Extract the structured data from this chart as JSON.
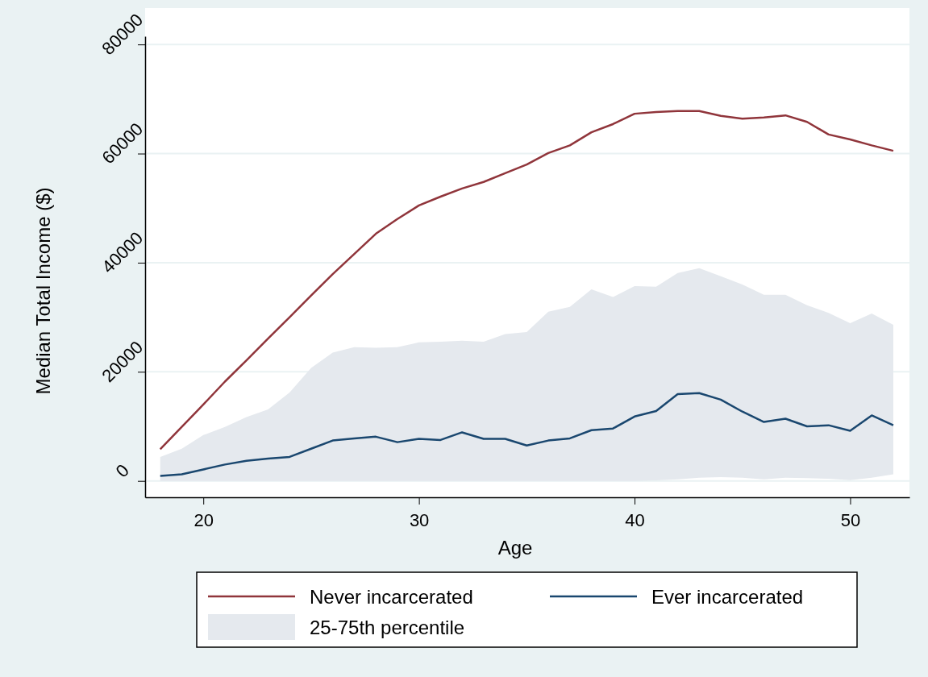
{
  "chart_data": {
    "type": "line",
    "xlabel": "Age",
    "ylabel": "Median Total Income ($)",
    "x": [
      18,
      19,
      20,
      21,
      22,
      23,
      24,
      25,
      26,
      27,
      28,
      29,
      30,
      31,
      32,
      33,
      34,
      35,
      36,
      37,
      38,
      39,
      40,
      41,
      42,
      43,
      44,
      45,
      46,
      47,
      48,
      49,
      50,
      51,
      52
    ],
    "series": [
      {
        "name": "Never incarcerated",
        "color": "#90353b",
        "values": [
          5800,
          9900,
          14000,
          18200,
          22100,
          26100,
          30000,
          34000,
          37900,
          41600,
          45300,
          48000,
          50500,
          52100,
          53600,
          54800,
          56400,
          58000,
          60100,
          61500,
          63900,
          65400,
          67300,
          67600,
          67800,
          67800,
          66900,
          66400,
          66600,
          67000,
          65800,
          63500,
          62600,
          61500,
          60500
        ]
      },
      {
        "name": "Ever incarcerated",
        "color": "#1a476f",
        "values": [
          900,
          1200,
          2100,
          3000,
          3700,
          4100,
          4400,
          5900,
          7400,
          7800,
          8100,
          7100,
          7700,
          7500,
          8900,
          7700,
          7700,
          6500,
          7400,
          7800,
          9300,
          9600,
          11800,
          12800,
          15900,
          16100,
          14900,
          12700,
          10800,
          11400,
          10000,
          10200,
          9200,
          12000,
          10200
        ]
      },
      {
        "name": "25-75th percentile",
        "color": "#e5e9ee",
        "values": [
          null,
          null,
          null,
          null,
          null,
          null,
          null,
          null,
          null,
          null,
          null,
          null,
          null,
          null,
          null,
          null,
          null,
          null,
          null,
          null,
          null,
          null,
          null,
          null,
          null,
          null,
          null,
          null,
          null,
          null,
          null,
          null,
          null,
          null,
          null
        ],
        "lower": [
          0,
          0,
          0,
          0,
          0,
          0,
          0,
          0,
          0,
          0,
          0,
          0,
          0,
          0,
          0,
          0,
          0,
          0,
          0,
          0,
          0,
          0,
          0,
          100,
          300,
          600,
          700,
          600,
          300,
          600,
          500,
          400,
          150,
          600,
          1200
        ],
        "upper": [
          4400,
          5900,
          8400,
          9900,
          11700,
          13100,
          16200,
          20700,
          23500,
          24500,
          24400,
          24500,
          25400,
          25500,
          25700,
          25500,
          26900,
          27300,
          31000,
          31900,
          35100,
          33700,
          35700,
          35600,
          38100,
          39000,
          37500,
          36000,
          34100,
          34100,
          32200,
          30800,
          28900,
          30700,
          28600
        ]
      }
    ],
    "xlim": [
      17.3,
      52.75
    ],
    "xticks": [
      20,
      30,
      40,
      50
    ],
    "ylim": [
      -3000,
      81500
    ],
    "yticks": [
      0,
      20000,
      40000,
      60000,
      80000
    ],
    "grid": "y",
    "legend": "bottom",
    "marker": "none",
    "line_style": "solid"
  }
}
